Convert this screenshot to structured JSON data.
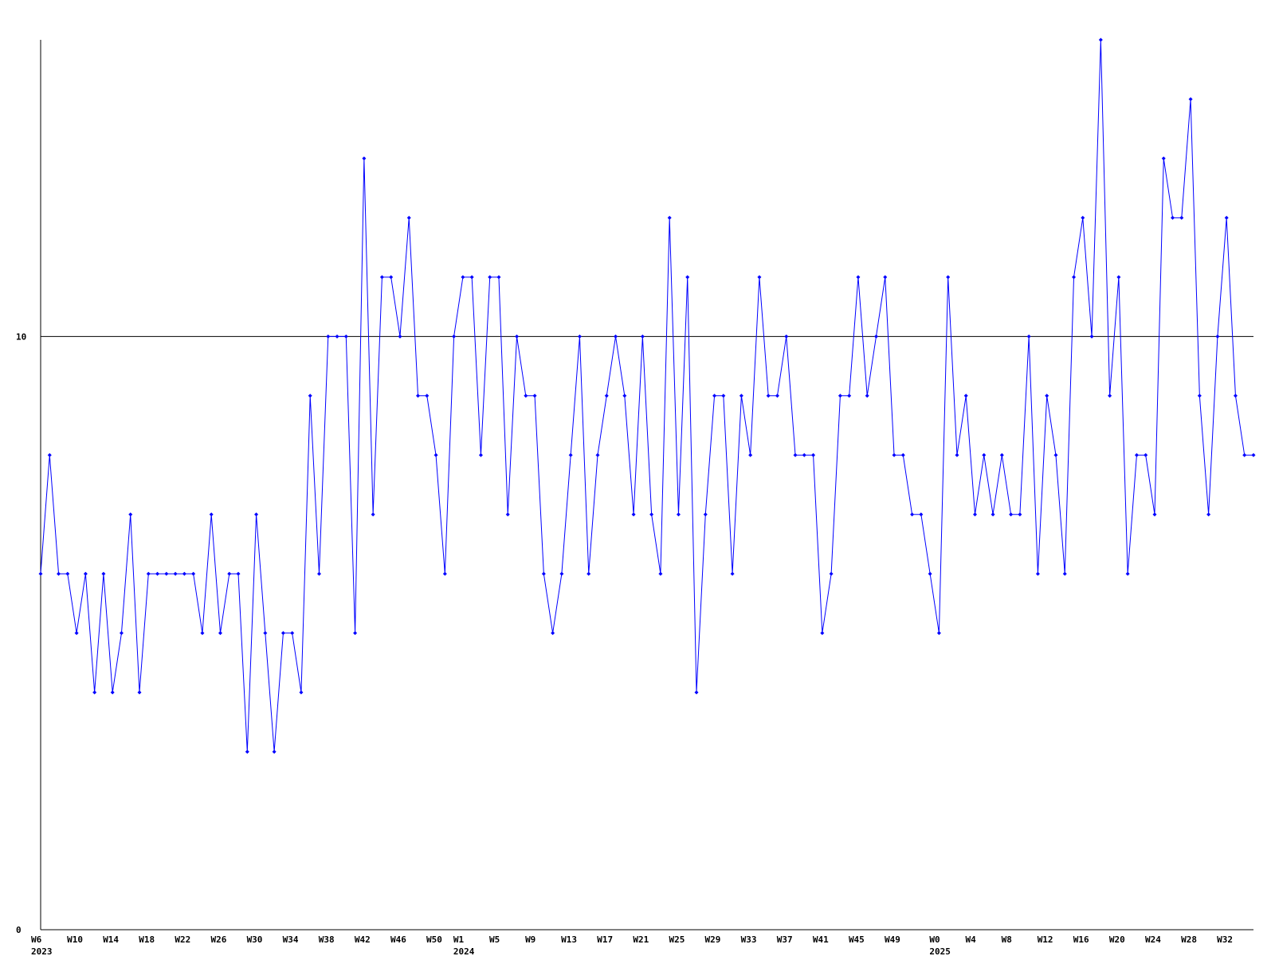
{
  "chart_data": {
    "type": "line",
    "categories": [
      "W6",
      null,
      null,
      null,
      "W10",
      null,
      null,
      null,
      "W14",
      null,
      null,
      null,
      "W18",
      null,
      null,
      null,
      "W22",
      null,
      null,
      null,
      "W26",
      null,
      null,
      null,
      "W30",
      null,
      null,
      null,
      "W34",
      null,
      null,
      null,
      "W38",
      null,
      null,
      null,
      "W42",
      null,
      null,
      null,
      "W46",
      null,
      null,
      null,
      "W50",
      null,
      null,
      "W1",
      null,
      null,
      null,
      "W5",
      null,
      null,
      null,
      "W9",
      null,
      null,
      null,
      "W13",
      null,
      null,
      null,
      "W17",
      null,
      null,
      null,
      "W21",
      null,
      null,
      null,
      "W25",
      null,
      null,
      null,
      "W29",
      null,
      null,
      null,
      "W33",
      null,
      null,
      null,
      "W37",
      null,
      null,
      null,
      "W41",
      null,
      null,
      null,
      "W45",
      null,
      null,
      null,
      "W49",
      null,
      null,
      null,
      null,
      "W0",
      null,
      null,
      null,
      "W4",
      null,
      null,
      null,
      "W8",
      null,
      null,
      null,
      "W12",
      null,
      null,
      null,
      "W16",
      null,
      null,
      null,
      "W20",
      null,
      null,
      null,
      "W24",
      null,
      null,
      null,
      "W28",
      null,
      null,
      null,
      "W32",
      null,
      null,
      null
    ],
    "category_years": [
      "2023",
      null,
      null,
      null,
      null,
      null,
      null,
      null,
      null,
      null,
      null,
      null,
      null,
      null,
      null,
      null,
      null,
      null,
      null,
      null,
      null,
      null,
      null,
      null,
      null,
      null,
      null,
      null,
      null,
      null,
      null,
      null,
      null,
      null,
      null,
      null,
      null,
      null,
      null,
      null,
      null,
      null,
      null,
      null,
      null,
      null,
      null,
      "2024",
      null,
      null,
      null,
      null,
      null,
      null,
      null,
      null,
      null,
      null,
      null,
      null,
      null,
      null,
      null,
      null,
      null,
      null,
      null,
      null,
      null,
      null,
      null,
      null,
      null,
      null,
      null,
      null,
      null,
      null,
      null,
      null,
      null,
      null,
      null,
      null,
      null,
      null,
      null,
      null,
      null,
      null,
      null,
      null,
      null,
      null,
      null,
      null,
      null,
      null,
      null,
      null,
      "2025",
      null,
      null,
      null,
      null,
      null,
      null,
      null,
      null,
      null,
      null,
      null,
      null,
      null,
      null,
      null,
      null,
      null,
      null,
      null,
      null,
      null,
      null,
      null,
      null,
      null,
      null,
      null,
      null,
      null,
      null,
      null,
      null,
      null,
      null,
      null
    ],
    "series": [
      {
        "color": "#0000ff",
        "values": [
          6,
          8,
          6,
          6,
          5,
          6,
          4,
          6,
          4,
          5,
          7,
          4,
          6,
          6,
          6,
          6,
          6,
          6,
          5,
          7,
          5,
          6,
          6,
          3,
          7,
          5,
          3,
          5,
          5,
          4,
          9,
          6,
          10,
          10,
          10,
          5,
          13,
          7,
          11,
          11,
          10,
          12,
          9,
          9,
          8,
          6,
          10,
          11,
          11,
          8,
          11,
          11,
          7,
          10,
          9,
          9,
          6,
          5,
          6,
          8,
          10,
          6,
          8,
          9,
          10,
          9,
          7,
          10,
          7,
          6,
          12,
          7,
          11,
          4,
          7,
          9,
          9,
          6,
          9,
          8,
          11,
          9,
          9,
          10,
          8,
          8,
          8,
          5,
          6,
          9,
          9,
          11,
          9,
          10,
          11,
          8,
          8,
          7,
          7,
          6,
          5,
          11,
          8,
          9,
          7,
          8,
          7,
          8,
          7,
          7,
          10,
          6,
          9,
          8,
          6,
          11,
          12,
          10,
          15,
          9,
          11,
          6,
          8,
          8,
          7,
          13,
          12,
          12,
          14,
          9,
          7,
          10,
          12,
          9,
          8,
          8
        ]
      }
    ],
    "ylim": [
      0,
      15
    ],
    "yticks": [
      0,
      10
    ],
    "grid": true
  }
}
